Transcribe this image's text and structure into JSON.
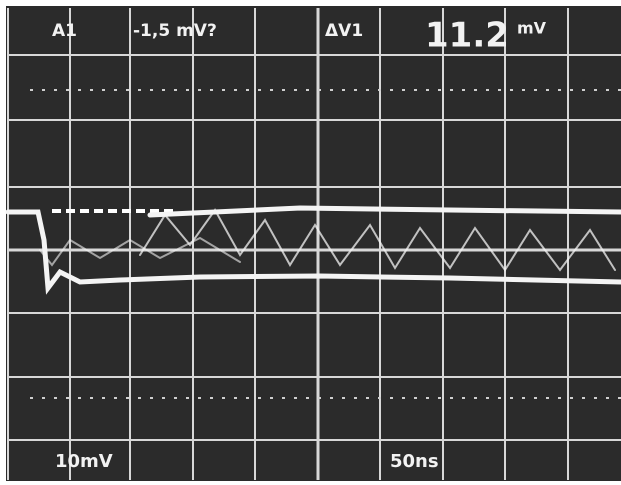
{
  "readouts": {
    "channel": "A1",
    "offset": "-1,5 mV?",
    "delta_label": "ΔV1",
    "delta_value": "11.2",
    "delta_unit": "mV"
  },
  "scale": {
    "volts_per_div": "10mV",
    "time_per_div": "50ns"
  }
}
